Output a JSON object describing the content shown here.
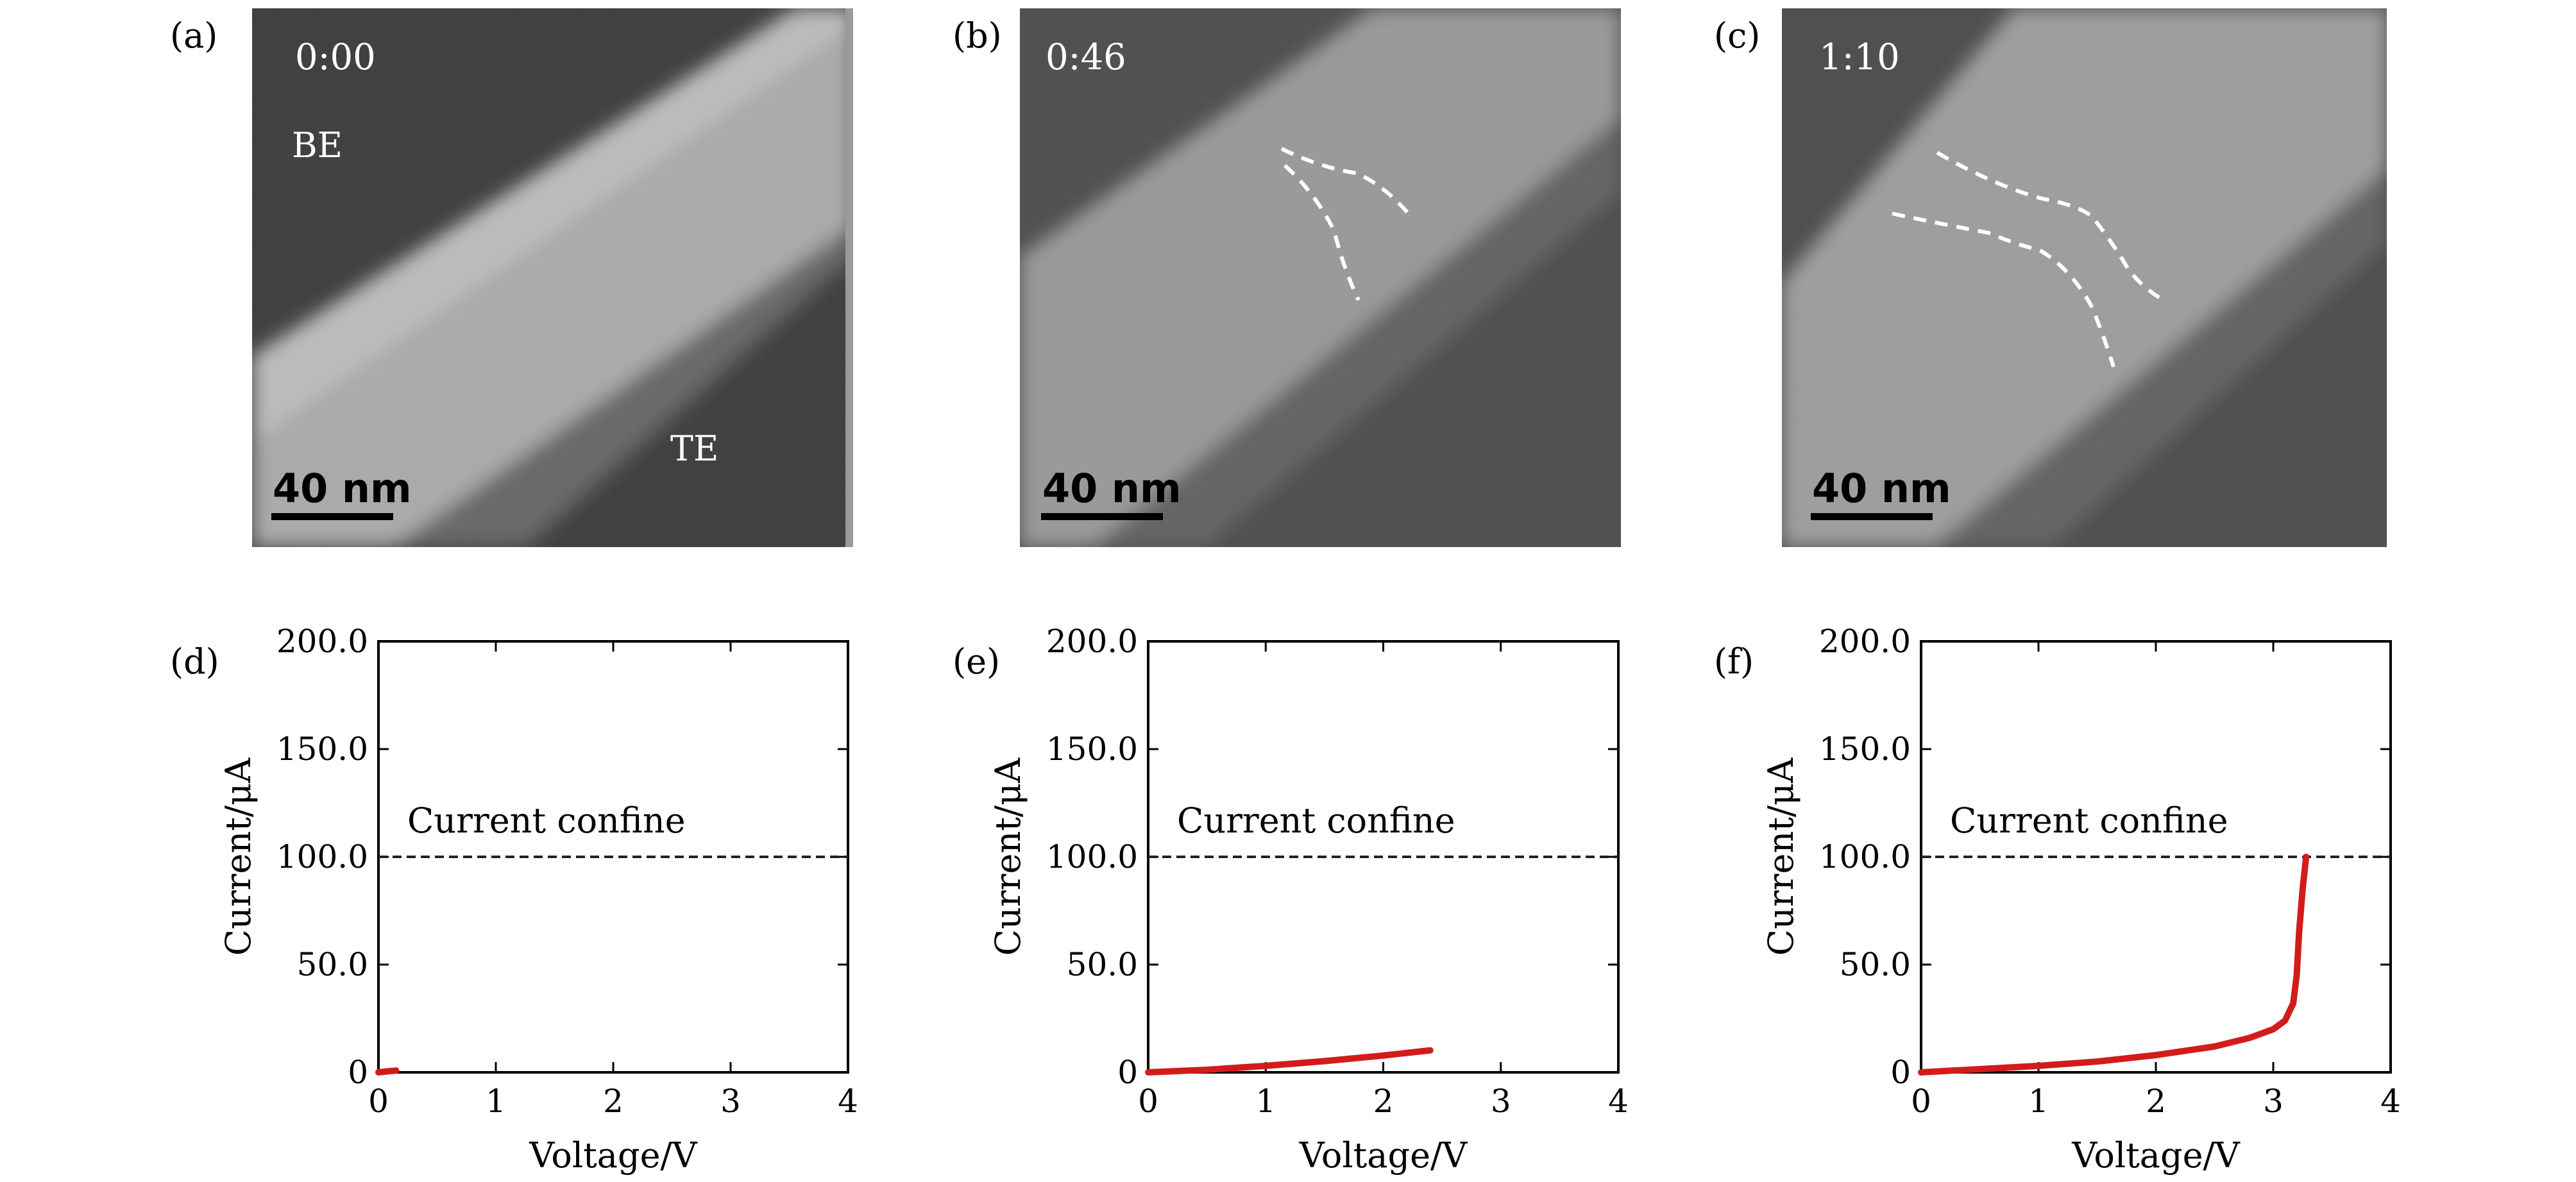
{
  "micrographs": [
    {
      "panel": "(a)",
      "time": "0:00",
      "labels": [
        "BE",
        "TE"
      ],
      "scale_bar": "40 nm",
      "dashed_trace_count": 0
    },
    {
      "panel": "(b)",
      "time": "0:46",
      "labels": [],
      "scale_bar": "40 nm",
      "dashed_trace_count": 1
    },
    {
      "panel": "(c)",
      "time": "1:10",
      "labels": [],
      "scale_bar": "40 nm",
      "dashed_trace_count": 2
    }
  ],
  "chart_data": [
    {
      "panel": "(d)",
      "type": "line",
      "xlabel": "Voltage/V",
      "ylabel": "Current/μA",
      "xlim": [
        0,
        4
      ],
      "ylim": [
        0,
        200
      ],
      "xticks": [
        "0",
        "1",
        "2",
        "3",
        "4"
      ],
      "yticks": [
        "0",
        "50.0",
        "100.0",
        "150.0",
        "200.0"
      ],
      "annotation": "Current confine",
      "reference_line": {
        "y": 100,
        "style": "dashed",
        "color": "#222222"
      },
      "series": [
        {
          "color": "#d21c1c",
          "x": [
            0,
            0.05,
            0.1,
            0.15
          ],
          "y": [
            0,
            0.3,
            0.6,
            0.8
          ]
        }
      ]
    },
    {
      "panel": "(e)",
      "type": "line",
      "xlabel": "Voltage/V",
      "ylabel": "Current/μA",
      "xlim": [
        0,
        4
      ],
      "ylim": [
        0,
        200
      ],
      "xticks": [
        "0",
        "1",
        "2",
        "3",
        "4"
      ],
      "yticks": [
        "0",
        "50.0",
        "100.0",
        "150.0",
        "200.0"
      ],
      "annotation": "Current confine",
      "reference_line": {
        "y": 100,
        "style": "dashed",
        "color": "#222222"
      },
      "series": [
        {
          "color": "#d21c1c",
          "x": [
            0,
            0.5,
            1.0,
            1.5,
            2.0,
            2.4
          ],
          "y": [
            0,
            1.2,
            3.0,
            5.2,
            7.8,
            10.2
          ]
        }
      ]
    },
    {
      "panel": "(f)",
      "type": "line",
      "xlabel": "Voltage/V",
      "ylabel": "Current/μA",
      "xlim": [
        0,
        4
      ],
      "ylim": [
        0,
        200
      ],
      "xticks": [
        "0",
        "1",
        "2",
        "3",
        "4"
      ],
      "yticks": [
        "0",
        "50.0",
        "100.0",
        "150.0",
        "200.0"
      ],
      "annotation": "Current confine",
      "reference_line": {
        "y": 100,
        "style": "dashed",
        "color": "#222222"
      },
      "series": [
        {
          "color": "#d21c1c",
          "x": [
            0,
            0.5,
            1.0,
            1.5,
            2.0,
            2.5,
            2.8,
            3.0,
            3.1,
            3.17,
            3.2,
            3.22,
            3.25,
            3.28
          ],
          "y": [
            0,
            1.5,
            3.0,
            5.0,
            8.0,
            12.0,
            16.0,
            20.0,
            24.0,
            32.0,
            45.0,
            65.0,
            85.0,
            100.0
          ]
        }
      ]
    }
  ]
}
